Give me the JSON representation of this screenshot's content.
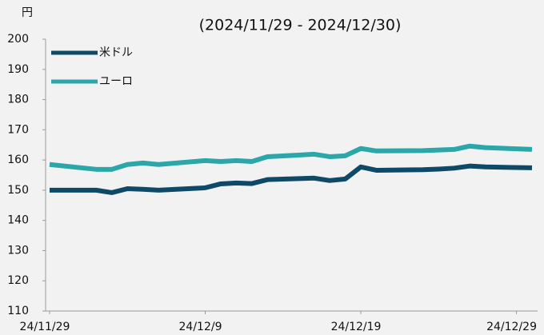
{
  "chart_data": {
    "type": "line",
    "title": "(2024/11/29 - 2024/12/30)",
    "y_label": "円",
    "x": [
      "2024-11-29",
      "2024-12-02",
      "2024-12-03",
      "2024-12-04",
      "2024-12-05",
      "2024-12-06",
      "2024-12-09",
      "2024-12-10",
      "2024-12-11",
      "2024-12-12",
      "2024-12-13",
      "2024-12-16",
      "2024-12-17",
      "2024-12-18",
      "2024-12-19",
      "2024-12-20",
      "2024-12-23",
      "2024-12-24",
      "2024-12-25",
      "2024-12-26",
      "2024-12-27",
      "2024-12-30"
    ],
    "series": [
      {
        "name": "米ドル",
        "color": "#0e4a68",
        "values": [
          150.0,
          150.0,
          149.2,
          150.5,
          150.3,
          150.0,
          150.8,
          152.1,
          152.4,
          152.2,
          153.5,
          154.0,
          153.2,
          153.7,
          157.7,
          156.6,
          156.8,
          157.0,
          157.3,
          158.0,
          157.7,
          157.4
        ]
      },
      {
        "name": "ユーロ",
        "color": "#2ba6a9",
        "values": [
          158.5,
          156.9,
          156.9,
          158.5,
          159.0,
          158.5,
          159.8,
          159.5,
          159.8,
          159.5,
          161.1,
          161.9,
          161.1,
          161.4,
          163.8,
          163.0,
          163.1,
          163.3,
          163.5,
          164.6,
          164.1,
          163.5
        ]
      }
    ],
    "xlim": [
      "2024-11-29",
      "2024-12-30"
    ],
    "xticks": [
      {
        "value": "2024-11-29",
        "label": "24/11/29"
      },
      {
        "value": "2024-12-09",
        "label": "24/12/9"
      },
      {
        "value": "2024-12-19",
        "label": "24/12/19"
      },
      {
        "value": "2024-12-29",
        "label": "24/12/29"
      }
    ],
    "ylim": [
      110,
      200
    ],
    "yticks": [
      110,
      120,
      130,
      140,
      150,
      160,
      170,
      180,
      190,
      200
    ],
    "grid": false,
    "legend": "upper left"
  }
}
